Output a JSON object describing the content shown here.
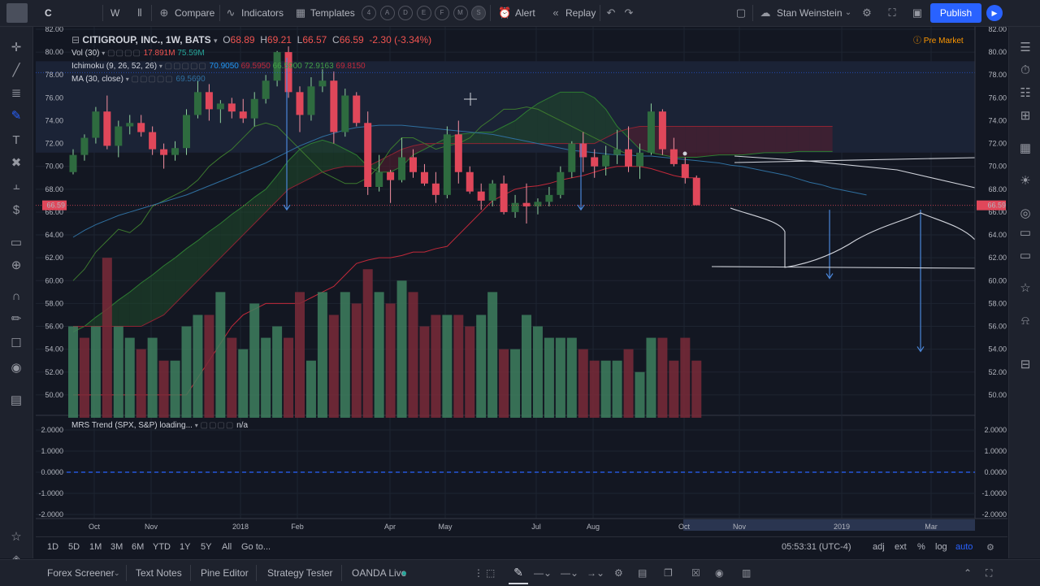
{
  "toolbar": {
    "symbol": "C",
    "interval": "W",
    "compare": "Compare",
    "indicators": "Indicators",
    "templates": "Templates",
    "alert": "Alert",
    "replay": "Replay",
    "user": "Stan Weinstein",
    "publish": "Publish",
    "template_circles": [
      "4",
      "A",
      "D",
      "E",
      "F",
      "M",
      "S"
    ]
  },
  "legend": {
    "title": "CITIGROUP, INC., 1W, BATS",
    "o_label": "O",
    "o": "68.89",
    "h_label": "H",
    "h": "69.21",
    "l_label": "L",
    "l": "66.57",
    "c_label": "C",
    "c": "66.59",
    "change": "-2.30 (-3.34%)",
    "vol_label": "Vol (30)",
    "vol1": "17.891M",
    "vol2": "75.59M",
    "ichimoku_label": "Ichimoku (9, 26, 52, 26)",
    "ich1": "70.9050",
    "ich2": "69.5950",
    "ich3": "66.5900",
    "ich4": "72.9163",
    "ich5": "69.8150",
    "ma_label": "MA (30, close)",
    "ma_val": "69.5690",
    "pre_market": "Pre Market",
    "mrs_label": "MRS Trend (SPX, S&P) loading...",
    "mrs_val": "n/a"
  },
  "colors": {
    "up": "#3e7f5e",
    "down": "#e0475a",
    "ma": "#2f6f9f",
    "tenkan": "#2196f3",
    "kijun": "#c2293a",
    "lagging": "#3d7a2f",
    "cloud_up": "#1f4a2a",
    "cloud_down": "#5a1f30",
    "arrows": "#4a86d8",
    "accent": "#2962ff"
  },
  "chart_data": {
    "type": "candlestick",
    "price_ylim": [
      48,
      82
    ],
    "price_ticks": [
      "82.00",
      "80.00",
      "78.00",
      "76.00",
      "74.00",
      "72.00",
      "70.00",
      "68.00",
      "66.00",
      "64.00",
      "62.00",
      "60.00",
      "58.00",
      "56.00",
      "54.00",
      "52.00",
      "50.00"
    ],
    "last_price": "66.59",
    "last_price_marker": "66.59",
    "x_labels": [
      "Oct",
      "Nov",
      "2018",
      "Feb",
      "Apr",
      "May",
      "Jul",
      "Aug",
      "Oct",
      "Nov",
      "2019",
      "Mar"
    ],
    "candles": [
      [
        69.5,
        71.5,
        69.3,
        71.0
      ],
      [
        71.0,
        72.8,
        70.5,
        72.5
      ],
      [
        72.5,
        75.2,
        72.0,
        74.8
      ],
      [
        74.8,
        76.2,
        71.5,
        71.8
      ],
      [
        71.8,
        74.0,
        70.8,
        73.5
      ],
      [
        73.5,
        74.5,
        72.8,
        73.8
      ],
      [
        73.8,
        74.5,
        72.6,
        73.0
      ],
      [
        73.0,
        73.5,
        71.0,
        71.5
      ],
      [
        71.5,
        72.0,
        69.8,
        71.0
      ],
      [
        71.0,
        72.2,
        70.5,
        71.6
      ],
      [
        71.6,
        75.0,
        71.0,
        74.5
      ],
      [
        74.5,
        77.5,
        74.2,
        76.5
      ],
      [
        76.5,
        77.2,
        74.0,
        75.0
      ],
      [
        75.0,
        75.8,
        73.8,
        75.5
      ],
      [
        75.5,
        76.0,
        74.2,
        74.8
      ],
      [
        74.8,
        75.9,
        73.8,
        74.2
      ],
      [
        74.2,
        76.5,
        73.5,
        75.9
      ],
      [
        75.9,
        78.0,
        75.5,
        77.5
      ],
      [
        77.5,
        80.1,
        77.0,
        80.0
      ],
      [
        80.0,
        80.5,
        76.0,
        76.5
      ],
      [
        76.5,
        77.0,
        73.0,
        74.5
      ],
      [
        74.5,
        77.8,
        74.0,
        77.0
      ],
      [
        77.0,
        78.5,
        76.5,
        77.5
      ],
      [
        77.5,
        78.3,
        72.0,
        73.0
      ],
      [
        73.0,
        76.8,
        72.6,
        76.2
      ],
      [
        76.2,
        76.5,
        73.5,
        73.8
      ],
      [
        73.8,
        74.8,
        67.5,
        68.2
      ],
      [
        68.2,
        71.0,
        67.8,
        69.5
      ],
      [
        69.5,
        69.7,
        66.8,
        68.8
      ],
      [
        68.8,
        72.5,
        68.6,
        70.8
      ],
      [
        70.8,
        71.5,
        69.0,
        69.5
      ],
      [
        69.5,
        70.2,
        68.3,
        68.5
      ],
      [
        68.5,
        69.5,
        66.8,
        67.5
      ],
      [
        67.5,
        73.5,
        67.2,
        72.8
      ],
      [
        72.8,
        74.0,
        68.5,
        69.5
      ],
      [
        69.5,
        70.0,
        67.6,
        67.8
      ],
      [
        67.8,
        68.5,
        66.2,
        67.0
      ],
      [
        67.0,
        68.8,
        66.5,
        68.5
      ],
      [
        68.5,
        69.2,
        65.8,
        66.0
      ],
      [
        66.0,
        67.5,
        65.5,
        66.8
      ],
      [
        66.8,
        68.5,
        65.0,
        66.5
      ],
      [
        66.5,
        67.2,
        65.8,
        66.9
      ],
      [
        66.9,
        68.2,
        66.5,
        67.5
      ],
      [
        67.5,
        70.0,
        67.2,
        69.5
      ],
      [
        69.5,
        72.2,
        69.0,
        72.0
      ],
      [
        72.0,
        73.0,
        69.5,
        70.8
      ],
      [
        70.8,
        71.5,
        69.0,
        70.0
      ],
      [
        70.0,
        71.8,
        69.2,
        71.0
      ],
      [
        71.0,
        73.2,
        70.2,
        71.5
      ],
      [
        71.5,
        73.5,
        69.5,
        70.0
      ],
      [
        70.0,
        72.0,
        68.9,
        71.2
      ],
      [
        71.2,
        75.5,
        71.0,
        74.8
      ],
      [
        74.8,
        75.0,
        71.0,
        71.5
      ],
      [
        71.5,
        72.5,
        70.0,
        70.2
      ],
      [
        70.2,
        70.8,
        68.5,
        69.0
      ],
      [
        69.0,
        69.2,
        66.6,
        66.6
      ]
    ],
    "volumes": [
      56,
      55,
      56,
      62,
      56,
      55,
      54,
      55,
      53,
      53,
      56,
      57,
      57,
      59,
      55,
      54,
      58,
      55,
      56,
      55,
      59,
      53,
      59,
      57,
      59,
      58,
      61,
      59,
      58,
      60,
      59,
      56,
      57,
      57,
      57,
      56,
      57,
      59,
      54,
      54,
      57,
      56,
      55,
      55,
      55,
      54,
      53,
      53,
      53,
      54,
      52,
      55,
      55,
      53,
      55,
      53
    ],
    "vol_up": [
      1,
      0,
      1,
      0,
      1,
      1,
      0,
      1,
      0,
      1,
      1,
      1,
      0,
      1,
      0,
      1,
      1,
      1,
      1,
      0,
      0,
      1,
      1,
      0,
      1,
      0,
      0,
      1,
      0,
      1,
      0,
      0,
      0,
      1,
      0,
      0,
      1,
      1,
      0,
      1,
      1,
      1,
      1,
      1,
      1,
      0,
      0,
      1,
      1,
      0,
      1,
      1,
      0,
      0,
      0,
      0
    ],
    "ma": [
      63.8,
      64.4,
      64.9,
      65.3,
      65.7,
      66.0,
      66.3,
      66.6,
      66.9,
      67.2,
      67.5,
      67.9,
      68.3,
      68.7,
      69.1,
      69.5,
      69.9,
      70.3,
      70.8,
      71.3,
      71.8,
      72.2,
      72.6,
      72.9,
      73.2,
      73.4,
      73.5,
      73.6,
      73.6,
      73.6,
      73.5,
      73.4,
      73.3,
      73.2,
      73.1,
      73.0,
      72.9,
      72.8,
      72.6,
      72.4,
      72.2,
      72.0,
      71.8,
      71.6,
      71.4,
      71.3,
      71.2,
      71.1,
      71.0,
      71.0,
      70.9,
      70.9,
      70.8,
      70.7,
      70.6,
      70.5,
      70.4,
      70.3,
      70.1,
      70.0,
      69.8,
      69.6,
      69.4,
      69.2,
      68.9,
      68.6,
      68.4,
      68.1,
      67.9,
      67.7,
      67.5
    ],
    "senkou_a": [
      55.5,
      56.0,
      56.8,
      57.5,
      58.3,
      59.0,
      59.8,
      60.5,
      61.3,
      62.0,
      62.8,
      63.5,
      64.3,
      65.0,
      65.8,
      66.5,
      67.3,
      68.0,
      69.2,
      70.5,
      71.5,
      72.0,
      72.3,
      72.0,
      71.5,
      71.0,
      70.0,
      69.5,
      69.5,
      70.0,
      71.0,
      71.5,
      72.0,
      72.5,
      72.8,
      72.9,
      73.0,
      73.0,
      73.5,
      74.0,
      74.8,
      75.5,
      76.0,
      76.5,
      76.5,
      76.5,
      76.0,
      75.0,
      73.5,
      72.5,
      71.5,
      71.2,
      71.0,
      70.8,
      70.8,
      70.8,
      70.9,
      71.0,
      71.0,
      71.0,
      71.1,
      71.2,
      71.2,
      71.2,
      71.3,
      71.3,
      71.3,
      71.3
    ],
    "senkou_b": [
      56.0,
      56.0,
      56.0,
      56.0,
      56.0,
      56.0,
      56.0,
      56.5,
      57.0,
      58.0,
      59.0,
      60.0,
      61.0,
      62.0,
      63.0,
      64.0,
      65.0,
      66.0,
      67.0,
      68.0,
      68.5,
      69.0,
      69.5,
      69.8,
      70.0,
      70.0,
      70.0,
      70.5,
      71.0,
      71.5,
      71.8,
      72.0,
      72.0,
      72.0,
      72.0,
      72.0,
      72.0,
      72.0,
      72.0,
      72.0,
      72.0,
      72.0,
      72.0,
      72.0,
      72.0,
      72.0,
      72.0,
      72.5,
      73.0,
      73.3,
      73.5,
      73.5,
      73.5,
      73.5,
      73.5,
      73.5,
      73.5,
      73.5,
      73.5,
      73.5,
      73.5,
      73.5,
      73.5,
      73.5,
      73.5,
      73.5,
      73.5,
      73.5
    ],
    "kijun": [
      50.0,
      50.0,
      50.0,
      50.0,
      50.0,
      50.0,
      50.0,
      50.0,
      50.0,
      50.0,
      50.0,
      51.5,
      53.0,
      54.5,
      56.0,
      57.0,
      57.5,
      58.0,
      58.0,
      58.0,
      58.0,
      58.5,
      59.0,
      59.5,
      60.5,
      61.5,
      61.8,
      62.0,
      62.0,
      62.2,
      62.5,
      62.5,
      62.8,
      63.0,
      64.0,
      65.0,
      66.0,
      67.0,
      67.5,
      68.0,
      68.2,
      68.3,
      68.5,
      68.8,
      69.0,
      69.2,
      69.5,
      69.8,
      70.0,
      70.0,
      70.0,
      69.8,
      69.5,
      69.2,
      69.0,
      69.0
    ],
    "lagging": [
      60.0,
      61.0,
      62.5,
      63.5,
      64.5,
      64.2,
      65.0,
      66.5,
      67.0,
      67.5,
      68.0,
      68.8,
      70.0,
      70.8,
      71.5,
      72.5,
      73.5,
      73.8,
      73.5,
      72.5,
      71.5,
      70.5,
      69.5,
      69.0,
      68.5,
      68.5,
      69.0,
      70.0,
      71.5,
      72.5,
      72.5,
      72.0,
      71.5,
      71.8,
      72.0,
      72.5,
      73.5,
      74.2,
      75.0,
      75.0,
      75.2,
      75.0,
      74.5,
      74.0,
      73.5,
      73.0,
      72.5,
      72.0,
      71.5,
      71.0
    ],
    "mrs_ticks": [
      "2.0000",
      "1.0000",
      "0.0000",
      "-1.0000",
      "-2.0000"
    ]
  },
  "range_bar": {
    "ranges": [
      "1D",
      "5D",
      "1M",
      "3M",
      "6M",
      "YTD",
      "1Y",
      "5Y",
      "All"
    ],
    "goto": "Go to...",
    "time": "05:53:31 (UTC-4)",
    "adj": "adj",
    "ext": "ext",
    "pct": "%",
    "log": "log",
    "auto": "auto"
  },
  "bottom_tabs": {
    "forex": "Forex Screener",
    "notes": "Text Notes",
    "pine": "Pine Editor",
    "tester": "Strategy Tester",
    "oanda": "OANDA Live"
  }
}
